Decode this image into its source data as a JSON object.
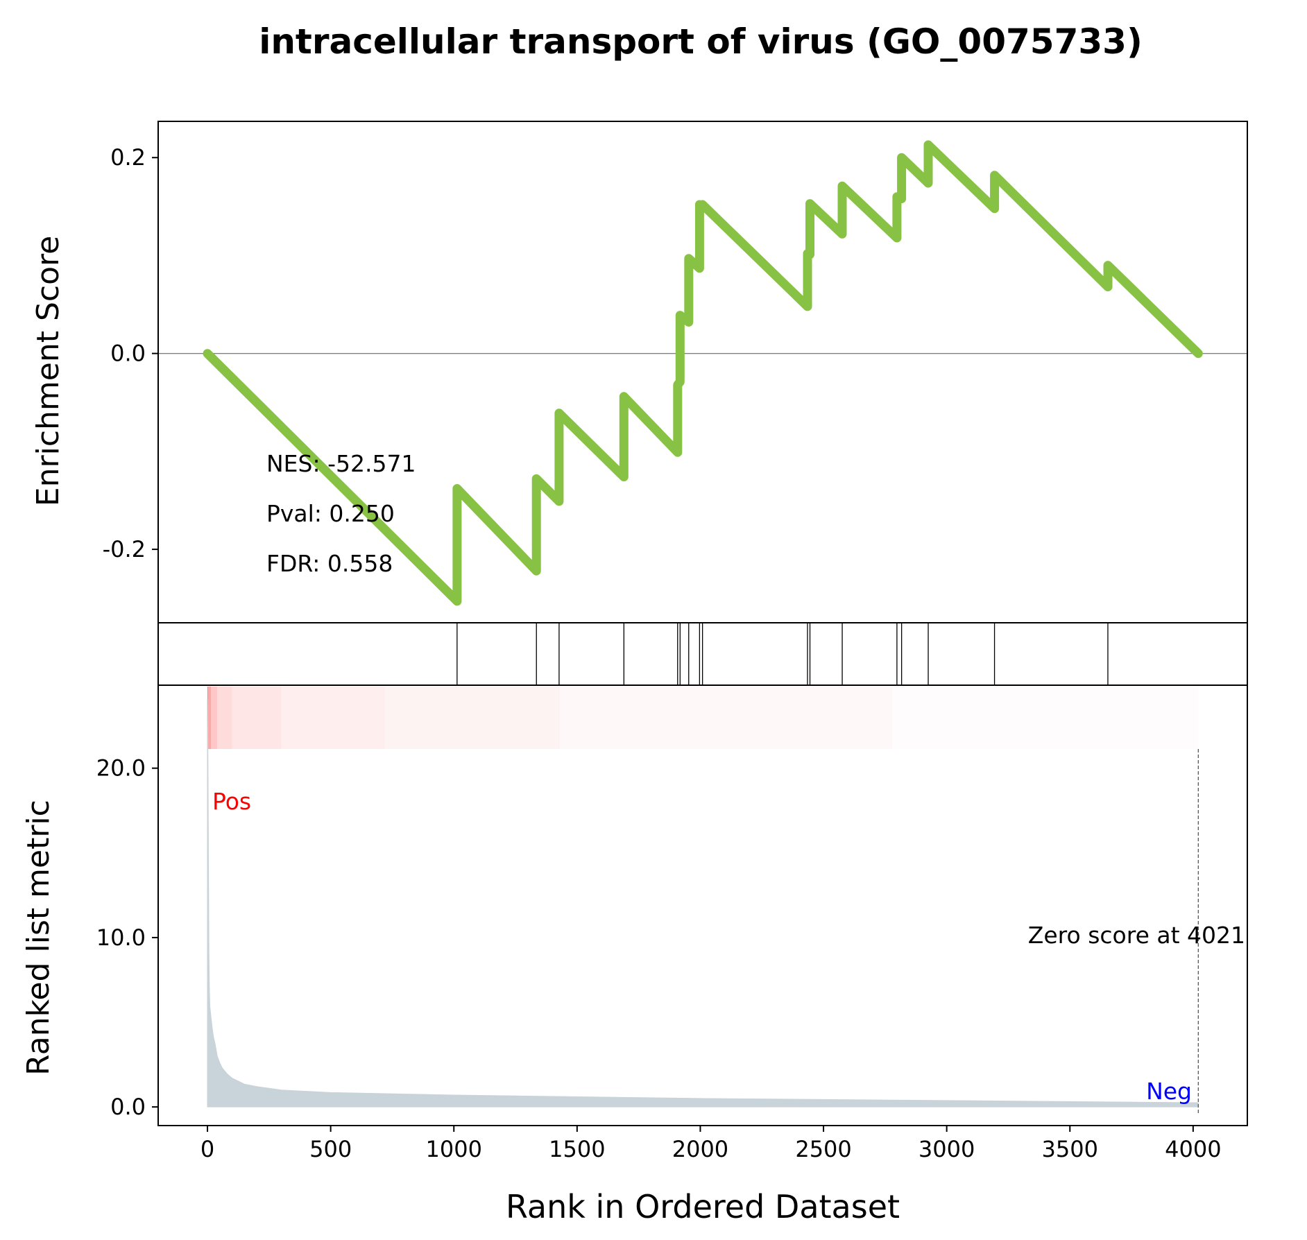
{
  "chart_data": {
    "type": "line",
    "title": "intracellular transport of virus (GO_0075733)",
    "xlabel": "Rank in Ordered Dataset",
    "xlim": [
      -200,
      4220
    ],
    "xticks": [
      0,
      500,
      1000,
      1500,
      2000,
      2500,
      3000,
      3500,
      4000
    ],
    "enrichment_panel": {
      "ylabel": "Enrichment Score",
      "ylim": [
        -0.275,
        0.237
      ],
      "yticks": [
        {
          "value": 0.2,
          "label": "0.2"
        },
        {
          "value": 0.0,
          "label": "0.0"
        },
        {
          "value": -0.2,
          "label": "-0.2"
        }
      ],
      "line_color": "#88c244",
      "series": [
        {
          "x": [
            0,
            1013,
            1013,
            1335,
            1335,
            1427,
            1427,
            1690,
            1690,
            1908,
            1908,
            1918,
            1918,
            1953,
            1953,
            1997,
            1997,
            2009,
            2009,
            2435,
            2435,
            2445,
            2445,
            2576,
            2576,
            2798,
            2798,
            2817,
            2817,
            2925,
            2925,
            3194,
            3194,
            3654,
            3654,
            4021
          ],
          "y": [
            0.0,
            -0.253,
            -0.138,
            -0.222,
            -0.128,
            -0.151,
            -0.061,
            -0.126,
            -0.044,
            -0.101,
            -0.032,
            -0.029,
            0.039,
            0.032,
            0.097,
            0.087,
            0.152,
            0.151,
            0.152,
            0.048,
            0.102,
            0.101,
            0.153,
            0.122,
            0.171,
            0.118,
            0.16,
            0.158,
            0.2,
            0.174,
            0.213,
            0.148,
            0.182,
            0.068,
            0.09,
            0.0
          ]
        }
      ],
      "annotations": [
        "NES: -52.571",
        "Pval: 0.250",
        "FDR: 0.558"
      ]
    },
    "hits_panel": {
      "hit_ranks": [
        1013,
        1335,
        1427,
        1690,
        1908,
        1918,
        1953,
        1997,
        2009,
        2435,
        2445,
        2576,
        2798,
        2817,
        2925,
        3194,
        3654
      ]
    },
    "heat_band": {
      "segments": [
        {
          "x_start": 0,
          "x_end": 3,
          "color": "#fa7a7a"
        },
        {
          "x_start": 3,
          "x_end": 15,
          "color": "#fda8a8"
        },
        {
          "x_start": 15,
          "x_end": 40,
          "color": "#fec8c8"
        },
        {
          "x_start": 40,
          "x_end": 100,
          "color": "#fedcdc"
        },
        {
          "x_start": 100,
          "x_end": 300,
          "color": "#fee6e6"
        },
        {
          "x_start": 300,
          "x_end": 720,
          "color": "#feeeee"
        },
        {
          "x_start": 720,
          "x_end": 1430,
          "color": "#fef3f3"
        },
        {
          "x_start": 1430,
          "x_end": 2780,
          "color": "#fef8f8"
        },
        {
          "x_start": 2780,
          "x_end": 4021,
          "color": "#fefcfc"
        }
      ]
    },
    "metric_panel": {
      "ylabel": "Ranked list metric",
      "ylim": [
        -1.1,
        24.9
      ],
      "yticks": [
        {
          "value": 0,
          "label": "0.0"
        },
        {
          "value": 10,
          "label": "10.0"
        },
        {
          "value": 20,
          "label": "20.0"
        }
      ],
      "fill_color": "#c9d3da",
      "x": [
        0,
        2,
        4,
        6,
        8,
        10,
        15,
        20,
        25,
        30,
        40,
        50,
        60,
        80,
        100,
        150,
        200,
        300,
        500,
        1000,
        2000,
        3000,
        4021
      ],
      "y": [
        24.1,
        20.5,
        14.5,
        9.0,
        6.8,
        5.9,
        5.2,
        4.6,
        4.1,
        3.8,
        3.0,
        2.6,
        2.3,
        1.95,
        1.7,
        1.35,
        1.2,
        1.0,
        0.85,
        0.7,
        0.5,
        0.38,
        0.25
      ],
      "pos_label": "Pos",
      "pos_color": "#ff0000",
      "neg_label": "Neg",
      "neg_color": "#0000ff",
      "zero_score_rank": 4021,
      "zero_score_text": "Zero score at 4021"
    }
  }
}
